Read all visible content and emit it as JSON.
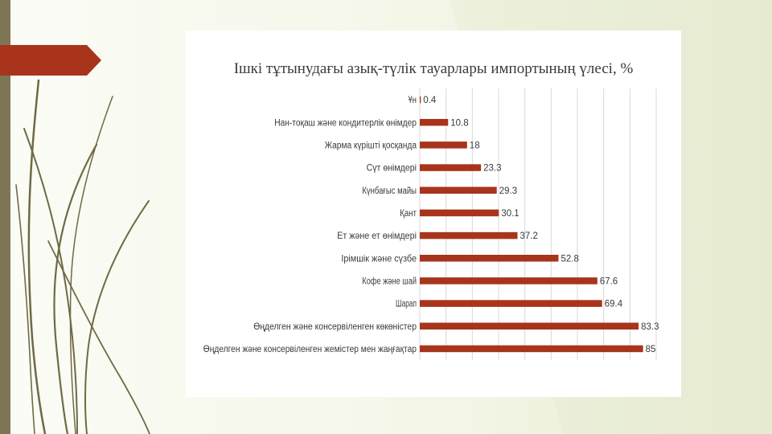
{
  "colors": {
    "bar": "#a8341c",
    "accent_arrow": "#a8341c",
    "left_band": "#7d7553",
    "background_light": "#fbfcf6",
    "background_green": "#e3e9cd",
    "gridline": "#d9d9d9",
    "text": "#3a3a3a"
  },
  "decorations": {
    "left_band": "olive-stripe",
    "arrow": "red-pointer-arrow",
    "grass": "stylized-grass-blades"
  },
  "chart_data": {
    "type": "bar",
    "orientation": "horizontal",
    "title": "Ішкі тұтынудағы азық-түлік тауарлары импортының үлесі, %",
    "categories": [
      "Ұн",
      "Нан-тоқаш және кондитерлік өнімдер",
      "Жарма күріштi қосқанда",
      "Сүт өнімдері",
      "Күнбағыс майы",
      "Қант",
      "Ет және ет өнімдері",
      "Ірімшік және сүзбе",
      "Кофе және шай",
      "Шарап",
      "Өңделген және консервіленген көкөністер",
      "Өңделген және консервіленген жемістер мен жаңғақтар"
    ],
    "values": [
      0.4,
      10.8,
      18,
      23.3,
      29.3,
      30.1,
      37.2,
      52.8,
      67.6,
      69.4,
      83.3,
      85
    ],
    "value_labels": [
      "0.4",
      "10.8",
      "18",
      "23.3",
      "29.3",
      "30.1",
      "37.2",
      "52.8",
      "67.6",
      "69.4",
      "83.3",
      "85"
    ],
    "xlim": [
      0,
      90
    ],
    "grid": "vertical",
    "legend": "none"
  }
}
